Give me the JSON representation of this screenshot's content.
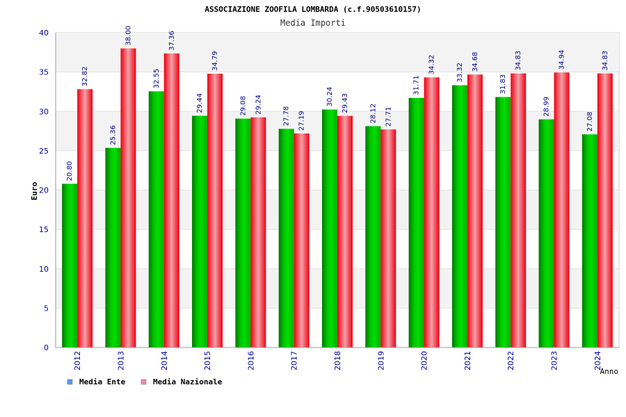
{
  "chart_data": {
    "type": "bar",
    "title": "ASSOCIAZIONE ZOOFILA LOMBARDA (c.f.90503610157)",
    "subtitle": "Media Importi",
    "xlabel": "Anno",
    "ylabel": "Euro",
    "ylim": [
      0,
      40
    ],
    "yticks": [
      "0",
      "5",
      "10",
      "15",
      "20",
      "25",
      "30",
      "35",
      "40"
    ],
    "grid": true,
    "legend_position": "bottom-left",
    "categories": [
      "2012",
      "2013",
      "2014",
      "2015",
      "2016",
      "2017",
      "2018",
      "2019",
      "2020",
      "2021",
      "2022",
      "2023",
      "2024"
    ],
    "series": [
      {
        "name": "Media Ente",
        "color": "#00bb00",
        "legend_color": "#5599ee",
        "values": [
          20.8,
          25.36,
          32.55,
          29.44,
          29.08,
          27.78,
          30.24,
          28.12,
          31.71,
          33.32,
          31.83,
          28.99,
          27.08
        ],
        "labels": [
          "20.80",
          "25.36",
          "32.55",
          "29.44",
          "29.08",
          "27.78",
          "30.24",
          "28.12",
          "31.71",
          "33.32",
          "31.83",
          "28.99",
          "27.08"
        ]
      },
      {
        "name": "Media Nazionale",
        "color": "#ee0022",
        "legend_color": "#ee88bb",
        "values": [
          32.82,
          38.0,
          37.36,
          34.79,
          29.24,
          27.19,
          29.43,
          27.71,
          34.32,
          34.68,
          34.83,
          34.94,
          34.83
        ],
        "labels": [
          "32.82",
          "38.00",
          "37.36",
          "34.79",
          "29.24",
          "27.19",
          "29.43",
          "27.71",
          "34.32",
          "34.68",
          "34.83",
          "34.94",
          "34.83"
        ]
      }
    ]
  }
}
